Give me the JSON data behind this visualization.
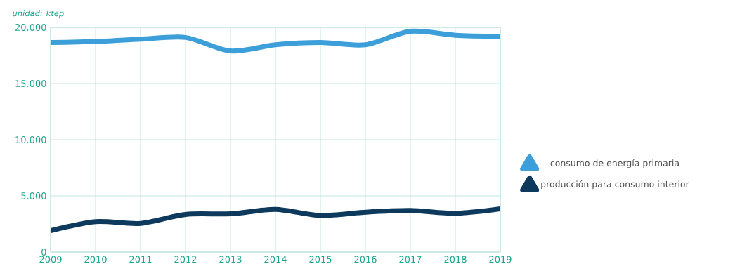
{
  "chart_data": {
    "type": "line",
    "ylabel": "unidad: ktep",
    "categories": [
      "2009",
      "2010",
      "2011",
      "2012",
      "2013",
      "2014",
      "2015",
      "2016",
      "2017",
      "2018",
      "2019"
    ],
    "series": [
      {
        "name": "consumo de energía primaria",
        "color": "#3c9fd9",
        "values": [
          18650,
          18750,
          18950,
          19100,
          17900,
          18450,
          18650,
          18450,
          19650,
          19300,
          19200
        ]
      },
      {
        "name": "producción para consumo interior",
        "color": "#0d3a5c",
        "values": [
          1900,
          2700,
          2550,
          3350,
          3400,
          3800,
          3250,
          3550,
          3700,
          3450,
          3850
        ]
      }
    ],
    "ylim": [
      0,
      20000
    ],
    "yticks": [
      {
        "value": 0,
        "label": "0"
      },
      {
        "value": 5000,
        "label": "5.000"
      },
      {
        "value": 10000,
        "label": "10.000"
      },
      {
        "value": 15000,
        "label": "15.000"
      },
      {
        "value": 20000,
        "label": "20.000"
      }
    ],
    "grid": true,
    "legend": "right",
    "marker": "none",
    "line_style": "solid"
  }
}
